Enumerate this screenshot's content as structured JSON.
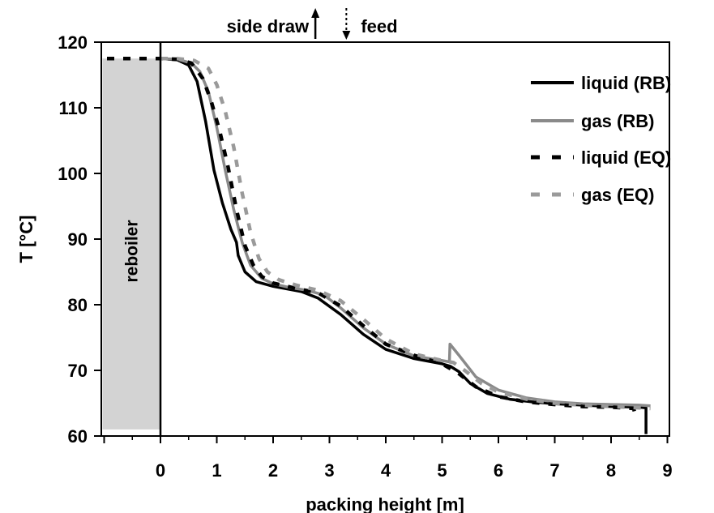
{
  "chart_data": {
    "type": "line",
    "xlabel": "packing height [m]",
    "ylabel": "T [°C]",
    "xlim": [
      -1.05,
      9.0
    ],
    "ylim": [
      60,
      120
    ],
    "xticks": [
      0,
      1,
      2,
      3,
      4,
      5,
      6,
      7,
      8,
      9
    ],
    "yticks": [
      60,
      70,
      80,
      90,
      100,
      110,
      120
    ],
    "grid": false,
    "legend_position": "top-right",
    "shaded_region": {
      "label": "reboiler",
      "x": [
        -1.0,
        0.0
      ],
      "y": [
        61,
        117.5
      ],
      "color": "#d3d3d3"
    },
    "top_annotations": [
      {
        "label": "side draw",
        "x": 2.75,
        "direction": "up",
        "style": "solid"
      },
      {
        "label": "feed",
        "x": 3.3,
        "direction": "down",
        "style": "dotted"
      }
    ],
    "series": [
      {
        "name": "liquid (RB)",
        "color": "#000000",
        "style": "solid",
        "x": [
          0,
          0.3,
          0.5,
          0.65,
          0.8,
          0.95,
          1.1,
          1.25,
          1.35,
          1.38,
          1.5,
          1.7,
          2.0,
          2.5,
          2.8,
          3.2,
          3.6,
          4.0,
          4.5,
          5.0,
          5.15,
          5.3,
          5.5,
          5.8,
          6.2,
          6.6,
          7.0,
          7.5,
          8.0,
          8.5,
          8.62,
          8.62
        ],
        "y": [
          117.5,
          117.3,
          116.5,
          114.0,
          108.0,
          100.5,
          95.5,
          91.5,
          89.5,
          87.5,
          85.0,
          83.5,
          82.8,
          82.0,
          81.0,
          78.5,
          75.5,
          73.2,
          71.8,
          71.0,
          70.6,
          69.8,
          68.0,
          66.5,
          65.6,
          65.2,
          64.9,
          64.7,
          64.5,
          64.4,
          64.3,
          60.3
        ]
      },
      {
        "name": "gas (RB)",
        "color": "#8a8a8a",
        "style": "solid",
        "x": [
          0,
          0.3,
          0.55,
          0.7,
          0.85,
          1.0,
          1.15,
          1.3,
          1.45,
          1.6,
          1.8,
          2.0,
          2.3,
          2.6,
          2.9,
          3.2,
          3.6,
          4.0,
          4.5,
          5.0,
          5.13,
          5.14,
          5.3,
          5.6,
          6.0,
          6.5,
          7.0,
          7.5,
          8.0,
          8.5,
          8.7
        ],
        "y": [
          117.5,
          117.4,
          116.8,
          115.5,
          112.5,
          107.0,
          100.5,
          94.5,
          89.5,
          86.0,
          84.0,
          83.2,
          82.6,
          82.2,
          81.5,
          79.5,
          76.5,
          74.0,
          72.2,
          71.5,
          71.3,
          74.0,
          72.3,
          69.0,
          67.0,
          65.8,
          65.2,
          64.9,
          64.8,
          64.7,
          64.6
        ]
      },
      {
        "name": "liquid (EQ)",
        "color": "#000000",
        "style": "dashed",
        "x": [
          -0.95,
          -0.5,
          0,
          0.3,
          0.55,
          0.75,
          0.9,
          1.05,
          1.2,
          1.35,
          1.5,
          1.65,
          1.8,
          2.0,
          2.4,
          2.8,
          3.2,
          3.6,
          4.0,
          4.5,
          5.0,
          5.3,
          5.6,
          6.0,
          6.5,
          7.0,
          7.5,
          8.0,
          8.4,
          8.45
        ],
        "y": [
          117.5,
          117.5,
          117.5,
          117.4,
          116.8,
          114.5,
          111.0,
          106.5,
          101.0,
          94.5,
          89.0,
          86.0,
          84.3,
          83.3,
          82.5,
          81.8,
          79.8,
          76.8,
          74.0,
          72.3,
          71.0,
          69.5,
          67.5,
          66.0,
          65.2,
          64.8,
          64.5,
          64.4,
          64.2,
          62.5
        ]
      },
      {
        "name": "gas (EQ)",
        "color": "#9a9a9a",
        "style": "dashed",
        "x": [
          0,
          0.3,
          0.6,
          0.85,
          1.0,
          1.15,
          1.3,
          1.45,
          1.6,
          1.75,
          1.9,
          2.1,
          2.4,
          2.8,
          3.2,
          3.6,
          4.0,
          4.5,
          5.0,
          5.2,
          5.4,
          5.7,
          6.0,
          6.5,
          7.0,
          7.5,
          8.0,
          8.5,
          8.7
        ],
        "y": [
          117.5,
          117.5,
          117.2,
          116.0,
          113.5,
          109.5,
          104.0,
          97.0,
          91.0,
          87.0,
          85.0,
          83.8,
          83.0,
          82.2,
          80.6,
          77.8,
          74.8,
          72.5,
          71.5,
          71.2,
          70.0,
          68.0,
          66.7,
          65.6,
          65.0,
          64.7,
          64.5,
          64.3,
          64.2
        ]
      }
    ]
  }
}
